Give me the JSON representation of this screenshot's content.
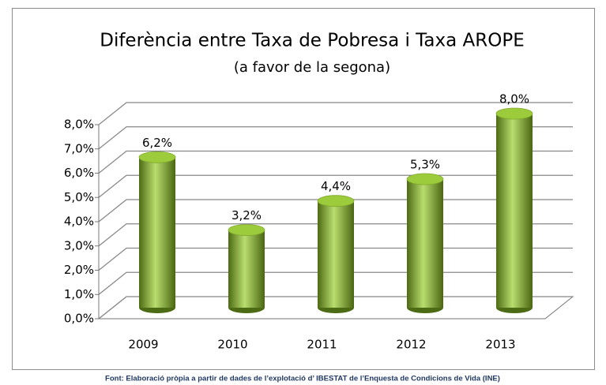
{
  "chart_data": {
    "type": "bar",
    "title": "Diferència entre Taxa de Pobresa i Taxa AROPE",
    "subtitle": "(a favor de la segona)",
    "categories": [
      "2009",
      "2010",
      "2011",
      "2012",
      "2013"
    ],
    "values": [
      6.2,
      3.2,
      4.4,
      5.3,
      8.0
    ],
    "value_labels": [
      "6,2%",
      "3,2%",
      "4,4%",
      "5,3%",
      "8,0%"
    ],
    "color": "#8fbf2f",
    "ylim": [
      0,
      8
    ],
    "yticks": [
      {
        "value": 0,
        "label": "0,0%"
      },
      {
        "value": 1,
        "label": "1,0%"
      },
      {
        "value": 2,
        "label": "2,0%"
      },
      {
        "value": 3,
        "label": "3,0%"
      },
      {
        "value": 4,
        "label": "4,0%"
      },
      {
        "value": 5,
        "label": "5,0%"
      },
      {
        "value": 6,
        "label": "6,0%"
      },
      {
        "value": 7,
        "label": "7,0%"
      },
      {
        "value": 8,
        "label": "8,0%"
      }
    ],
    "grid": true,
    "source": "Font: Elaboració pròpia a partir de dades de l’explotació d’ IBESTAT de l’Enquesta de Condicions de Vida (INE)"
  }
}
